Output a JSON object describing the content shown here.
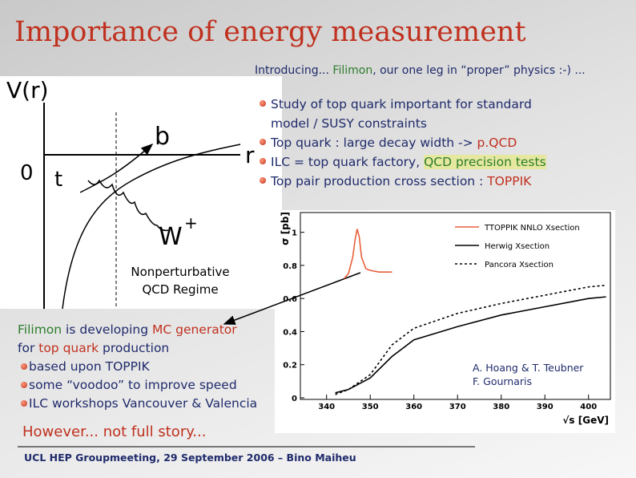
{
  "title": "Importance of energy measurement",
  "subtitle": [
    "Introducing... ",
    "Filimon",
    ", our one leg in “proper” physics :-) ..."
  ],
  "bullets": [
    [
      "Study of top quark important for standard model / SUSY constraints"
    ],
    [
      "Top quark : large decay width -> ",
      "p.QCD"
    ],
    [
      "ILC = top quark factory, ",
      "QCD precision tests"
    ],
    [
      "Top pair production cross section : ",
      "TOPPIK"
    ]
  ],
  "diagram": {
    "y_label": "V(r)",
    "x_label": "r",
    "zero": "0",
    "t": "t",
    "b": "b",
    "w": "W",
    "w_sup": "+",
    "caption": [
      "Nonperturbative",
      "QCD Regime"
    ]
  },
  "filimon": {
    "intro": [
      "Filimon",
      " is developing ",
      "MC generator",
      "for ",
      "top quark",
      " production"
    ],
    "bullets": [
      "based upon TOPPIK",
      "some “voodoo” to improve speed",
      "ILC workshops Vancouver & Valencia"
    ]
  },
  "however": "However... not full story...",
  "footer": "UCL HEP Groupmeeting, 29 September 2006 – Bino Maiheu",
  "chart_data": {
    "type": "line",
    "xlabel": "√s [GeV]",
    "ylabel": "σ [pb]",
    "xlim": [
      334,
      405
    ],
    "ylim": [
      0,
      1.1
    ],
    "xticks": [
      340,
      350,
      360,
      370,
      380,
      390,
      400
    ],
    "yticks": [
      0,
      0.2,
      0.4,
      0.6,
      0.8,
      1
    ],
    "annotations": [
      "A. Hoang & T. Teubner",
      "F. Gournaris"
    ],
    "series": [
      {
        "name": "TTOPPIK NNLO Xsection",
        "color": "#e8603c",
        "dash": "none",
        "x": [
          344,
          345,
          346,
          346.5,
          347,
          347.5,
          348,
          349,
          350,
          352,
          355
        ],
        "values": [
          0.72,
          0.75,
          0.85,
          0.95,
          1.02,
          0.97,
          0.85,
          0.78,
          0.77,
          0.76,
          0.76
        ]
      },
      {
        "name": "Herwig Xsection",
        "color": "#000000",
        "dash": "none",
        "x": [
          342,
          345,
          350,
          355,
          360,
          365,
          370,
          380,
          390,
          400,
          404
        ],
        "values": [
          0.03,
          0.05,
          0.12,
          0.25,
          0.35,
          0.39,
          0.43,
          0.5,
          0.55,
          0.6,
          0.61
        ]
      },
      {
        "name": "Pancora Xsection",
        "color": "#000000",
        "dash": "3,3",
        "x": [
          342,
          345,
          350,
          355,
          360,
          370,
          380,
          390,
          400,
          404
        ],
        "values": [
          0.02,
          0.05,
          0.14,
          0.32,
          0.42,
          0.51,
          0.57,
          0.62,
          0.67,
          0.68
        ]
      }
    ]
  }
}
